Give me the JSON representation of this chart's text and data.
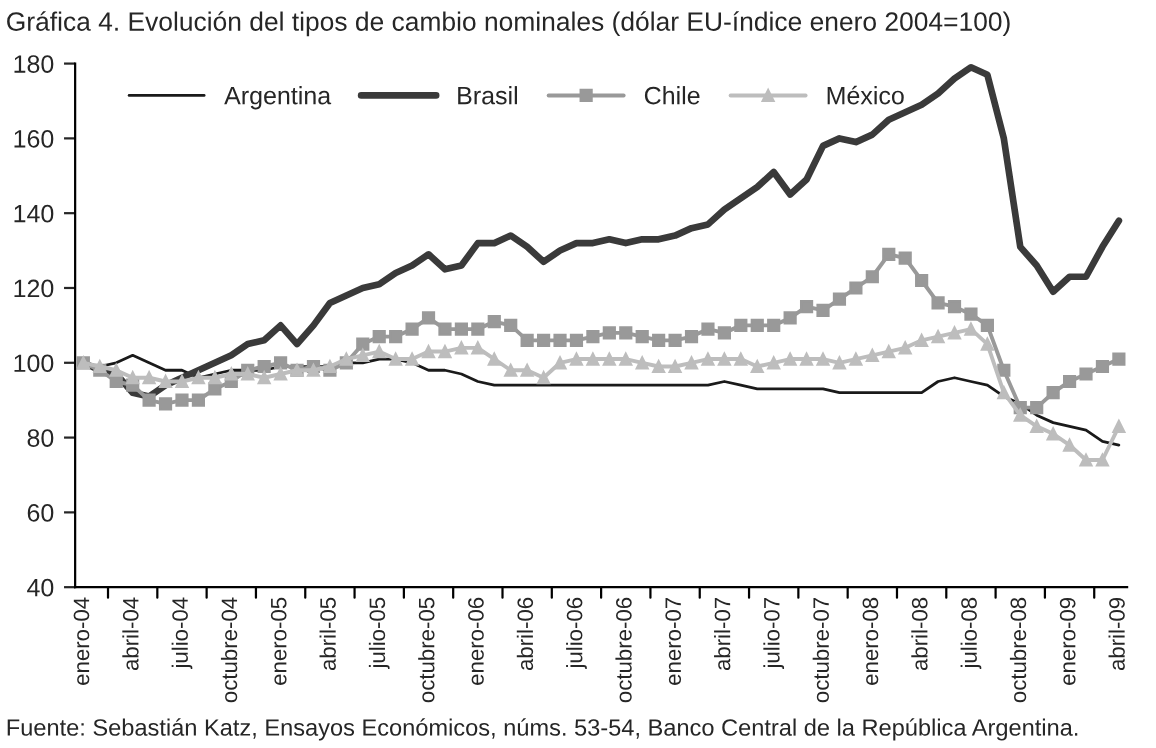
{
  "chart_data": {
    "type": "line",
    "title": "Gráfica 4. Evolución del tipos de cambio nominales (dólar EU-índice enero 2004=100)",
    "annotations": [
      "Fuente: Sebastián Katz, Ensayos Económicos, núms. 53-54, Banco Central de la República Argentina."
    ],
    "categories": [
      "enero-04",
      null,
      null,
      "abril-04",
      null,
      null,
      "julio-04",
      null,
      null,
      "octubre-04",
      null,
      null,
      "enero-05",
      null,
      null,
      "abril-05",
      null,
      null,
      "julio-05",
      null,
      null,
      "octubre-05",
      null,
      null,
      "enero-06",
      null,
      null,
      "abril-06",
      null,
      null,
      "julio-06",
      null,
      null,
      "octubre-06",
      null,
      null,
      "enero-07",
      null,
      null,
      "abril-07",
      null,
      null,
      "julio-07",
      null,
      null,
      "octubre-07",
      null,
      null,
      "enero-08",
      null,
      null,
      "abril-08",
      null,
      null,
      "julio-08",
      null,
      null,
      "octubre-08",
      null,
      null,
      "enero-09",
      null,
      null,
      "abril-09"
    ],
    "series": [
      {
        "name": "Argentina",
        "color": "#1a1a1a",
        "marker": "none",
        "values": [
          100,
          99,
          100,
          102,
          100,
          98,
          98,
          96,
          97,
          98,
          98,
          98,
          99,
          99,
          99,
          99,
          100,
          100,
          101,
          101,
          100,
          98,
          98,
          97,
          95,
          94,
          94,
          94,
          94,
          94,
          94,
          94,
          94,
          94,
          94,
          94,
          94,
          94,
          94,
          95,
          94,
          93,
          93,
          93,
          93,
          93,
          92,
          92,
          92,
          92,
          92,
          92,
          95,
          96,
          95,
          94,
          91,
          89,
          86,
          84,
          83,
          82,
          79,
          78
        ]
      },
      {
        "name": "Brasil",
        "color": "#3a3a3a",
        "marker": "none",
        "values": [
          100,
          98,
          97,
          92,
          91,
          94,
          96,
          98,
          100,
          102,
          105,
          106,
          110,
          105,
          110,
          116,
          118,
          120,
          121,
          124,
          126,
          129,
          125,
          126,
          132,
          132,
          134,
          131,
          127,
          130,
          132,
          132,
          133,
          132,
          133,
          133,
          134,
          136,
          137,
          141,
          144,
          147,
          151,
          145,
          149,
          158,
          160,
          159,
          161,
          165,
          167,
          169,
          172,
          176,
          179,
          177,
          160,
          131,
          126,
          119,
          123,
          123,
          131,
          138
        ]
      },
      {
        "name": "Chile",
        "color": "#999999",
        "marker": "square",
        "values": [
          100,
          98,
          95,
          94,
          90,
          89,
          90,
          90,
          93,
          95,
          98,
          99,
          100,
          98,
          99,
          98,
          100,
          105,
          107,
          107,
          109,
          112,
          109,
          109,
          109,
          111,
          110,
          106,
          106,
          106,
          106,
          107,
          108,
          108,
          107,
          106,
          106,
          107,
          109,
          108,
          110,
          110,
          110,
          112,
          115,
          114,
          117,
          120,
          123,
          129,
          128,
          122,
          116,
          115,
          113,
          110,
          98,
          88,
          88,
          92,
          95,
          97,
          99,
          101
        ]
      },
      {
        "name": "México",
        "color": "#bdbdbd",
        "marker": "triangle",
        "values": [
          100,
          99,
          98,
          96,
          96,
          95,
          95,
          96,
          96,
          97,
          97,
          96,
          97,
          98,
          98,
          99,
          101,
          102,
          103,
          101,
          101,
          103,
          103,
          104,
          104,
          101,
          98,
          98,
          96,
          100,
          101,
          101,
          101,
          101,
          100,
          99,
          99,
          100,
          101,
          101,
          101,
          99,
          100,
          101,
          101,
          101,
          100,
          101,
          102,
          103,
          104,
          106,
          107,
          108,
          109,
          105,
          92,
          86,
          83,
          81,
          78,
          74,
          74,
          83
        ]
      }
    ],
    "ylim": [
      40,
      180
    ],
    "yticks": [
      40,
      60,
      80,
      100,
      120,
      140,
      160,
      180
    ],
    "grid": false,
    "legend": "top"
  }
}
